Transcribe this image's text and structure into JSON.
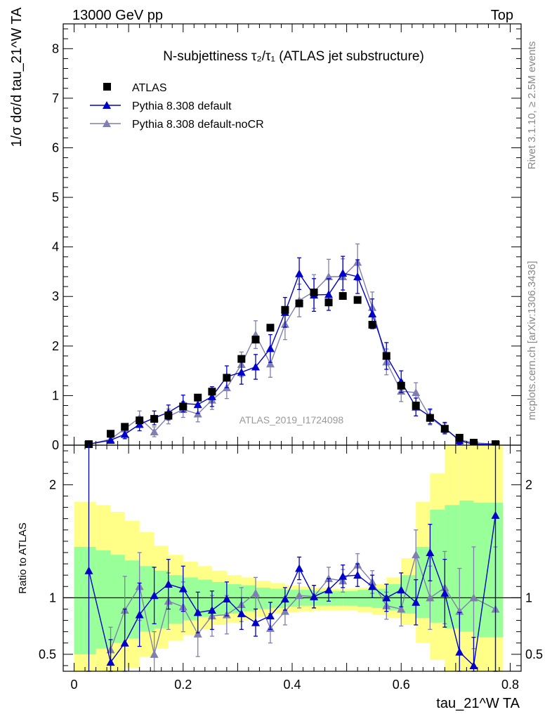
{
  "header": {
    "left": "13000 GeV pp",
    "right": "Top"
  },
  "side": {
    "rivet": "Rivet 3.1.10, ≥ 2.5M events",
    "mcplots": "mcplots.cern.ch [arXiv:1306.3436]"
  },
  "colors": {
    "atlas": "#000000",
    "default": "#0000cc",
    "nocr": "#7f7fb2",
    "band_green": "#99ff99",
    "band_yellow": "#ffff88"
  },
  "chart_data": [
    {
      "type": "scatter",
      "title": "N-subjettiness τ₂/τ₁ (ATLAS jet substructure)",
      "ylabel": "1/σ dσ/d tau_21^W TA",
      "xlim": [
        -0.02,
        0.82
      ],
      "ylim": [
        0,
        8.5
      ],
      "yticks": [
        0,
        1,
        2,
        3,
        4,
        5,
        6,
        7,
        8
      ],
      "watermark": "ATLAS_2019_I1724098",
      "legend": [
        "ATLAS",
        "Pythia 8.308 default",
        "Pythia 8.308 default-noCR"
      ],
      "x": [
        0.027,
        0.067,
        0.093,
        0.12,
        0.147,
        0.173,
        0.2,
        0.227,
        0.253,
        0.28,
        0.307,
        0.333,
        0.36,
        0.387,
        0.413,
        0.44,
        0.467,
        0.493,
        0.52,
        0.547,
        0.573,
        0.6,
        0.627,
        0.653,
        0.68,
        0.707,
        0.733,
        0.773
      ],
      "series": [
        {
          "name": "ATLAS",
          "values": [
            0.02,
            0.23,
            0.37,
            0.5,
            0.53,
            0.6,
            0.78,
            0.96,
            1.08,
            1.36,
            1.74,
            2.13,
            2.37,
            2.73,
            2.86,
            3.08,
            2.88,
            3.01,
            2.93,
            2.43,
            1.8,
            1.2,
            0.8,
            0.55,
            0.33,
            0.15,
            0.05,
            0.02
          ]
        },
        {
          "name": "Pythia 8.308 default",
          "values": [
            0.02,
            0.1,
            0.22,
            0.42,
            0.55,
            0.66,
            0.84,
            0.82,
            0.98,
            1.38,
            1.47,
            1.58,
            1.95,
            2.68,
            3.46,
            3.03,
            3.04,
            3.47,
            3.4,
            2.65,
            1.8,
            1.28,
            0.77,
            0.58,
            0.35,
            0.09,
            0.02,
            0.02
          ],
          "errors": [
            0.03,
            0.06,
            0.09,
            0.13,
            0.14,
            0.15,
            0.17,
            0.18,
            0.2,
            0.22,
            0.24,
            0.25,
            0.28,
            0.3,
            0.32,
            0.33,
            0.32,
            0.34,
            0.34,
            0.3,
            0.27,
            0.22,
            0.18,
            0.15,
            0.11,
            0.07,
            0.04,
            0.03
          ]
        },
        {
          "name": "Pythia 8.308 default-noCR",
          "values": [
            0.02,
            0.12,
            0.33,
            0.55,
            0.27,
            0.58,
            0.72,
            0.63,
            0.91,
            1.16,
            1.63,
            2.23,
            1.64,
            2.44,
            2.92,
            3.1,
            3.4,
            3.4,
            3.69,
            2.78,
            1.68,
            1.09,
            1.06,
            0.56,
            0.33,
            0.11,
            0.05,
            0.02
          ],
          "errors": [
            0.03,
            0.07,
            0.1,
            0.14,
            0.1,
            0.15,
            0.16,
            0.16,
            0.19,
            0.22,
            0.25,
            0.28,
            0.27,
            0.31,
            0.33,
            0.34,
            0.35,
            0.36,
            0.37,
            0.31,
            0.26,
            0.21,
            0.2,
            0.15,
            0.11,
            0.07,
            0.04,
            0.03
          ]
        }
      ]
    },
    {
      "type": "scatter",
      "ylabel": "Ratio to ATLAS",
      "xlabel": "tau_21^W TA",
      "xlim": [
        -0.02,
        0.82
      ],
      "ylim": [
        0.35,
        2.35
      ],
      "yticks": [
        0.5,
        1,
        2
      ],
      "xticks": [
        0,
        0.2,
        0.4,
        0.6,
        0.8
      ],
      "bands": {
        "edges": [
          0,
          0.04,
          0.067,
          0.093,
          0.12,
          0.147,
          0.173,
          0.2,
          0.227,
          0.253,
          0.28,
          0.307,
          0.333,
          0.36,
          0.387,
          0.413,
          0.44,
          0.467,
          0.493,
          0.52,
          0.547,
          0.573,
          0.6,
          0.627,
          0.653,
          0.68,
          0.707,
          0.733,
          0.787
        ],
        "green_lo": [
          0.5,
          0.55,
          0.6,
          0.64,
          0.7,
          0.73,
          0.77,
          0.8,
          0.83,
          0.85,
          0.86,
          0.88,
          0.9,
          0.91,
          0.92,
          0.93,
          0.93,
          0.93,
          0.93,
          0.92,
          0.91,
          0.89,
          0.86,
          0.82,
          0.78,
          0.73,
          0.7,
          0.65
        ],
        "green_hi": [
          1.45,
          1.42,
          1.38,
          1.33,
          1.28,
          1.24,
          1.2,
          1.18,
          1.16,
          1.14,
          1.12,
          1.11,
          1.09,
          1.08,
          1.07,
          1.07,
          1.06,
          1.06,
          1.06,
          1.07,
          1.08,
          1.12,
          1.2,
          1.45,
          1.78,
          1.82,
          1.86,
          1.84
        ],
        "yellow_lo": [
          0.35,
          0.35,
          0.35,
          0.38,
          0.48,
          0.55,
          0.62,
          0.67,
          0.72,
          0.76,
          0.78,
          0.8,
          0.83,
          0.86,
          0.87,
          0.88,
          0.89,
          0.89,
          0.89,
          0.87,
          0.85,
          0.82,
          0.76,
          0.6,
          0.45,
          0.35,
          0.35,
          0.35
        ],
        "yellow_hi": [
          1.85,
          1.82,
          1.76,
          1.68,
          1.58,
          1.46,
          1.38,
          1.32,
          1.28,
          1.24,
          1.2,
          1.18,
          1.15,
          1.13,
          1.11,
          1.1,
          1.09,
          1.08,
          1.08,
          1.09,
          1.12,
          1.18,
          1.35,
          1.85,
          2.1,
          2.35,
          2.35,
          2.35
        ]
      },
      "series": [
        {
          "name": "Pythia 8.308 default",
          "values": [
            1.24,
            0.43,
            0.6,
            0.85,
            1.02,
            1.12,
            1.08,
            0.87,
            0.89,
            0.99,
            0.86,
            0.78,
            0.84,
            0.99,
            1.26,
            1.01,
            1.07,
            1.19,
            1.2,
            1.1,
            1.0,
            1.07,
            0.96,
            1.4,
            1.04,
            0.52,
            0.4,
            1.73
          ],
          "errors": [
            1.15,
            0.2,
            0.3,
            0.28,
            0.25,
            0.22,
            0.2,
            0.18,
            0.17,
            0.15,
            0.14,
            0.12,
            0.12,
            0.1,
            0.1,
            0.1,
            0.1,
            0.1,
            0.1,
            0.1,
            0.12,
            0.15,
            0.2,
            0.25,
            0.3,
            0.35,
            0.25,
            1.4
          ]
        },
        {
          "name": "Pythia 8.308 default-noCR",
          "values": [
            null,
            0.54,
            0.89,
            1.1,
            0.5,
            0.97,
            0.92,
            0.68,
            0.84,
            0.85,
            0.94,
            1.04,
            0.73,
            0.88,
            1.02,
            1.01,
            1.17,
            1.15,
            1.29,
            1.14,
            0.93,
            0.9,
            1.38,
            1.0,
            1.09,
            0.88,
            1.0,
            0.9
          ],
          "errors": [
            null,
            0.2,
            0.3,
            0.3,
            0.2,
            0.25,
            0.22,
            0.2,
            0.18,
            0.17,
            0.15,
            0.14,
            0.13,
            0.12,
            0.11,
            0.1,
            0.1,
            0.1,
            0.1,
            0.1,
            0.12,
            0.15,
            0.22,
            0.28,
            0.32,
            0.38,
            0.45,
            0.55
          ]
        }
      ]
    }
  ]
}
